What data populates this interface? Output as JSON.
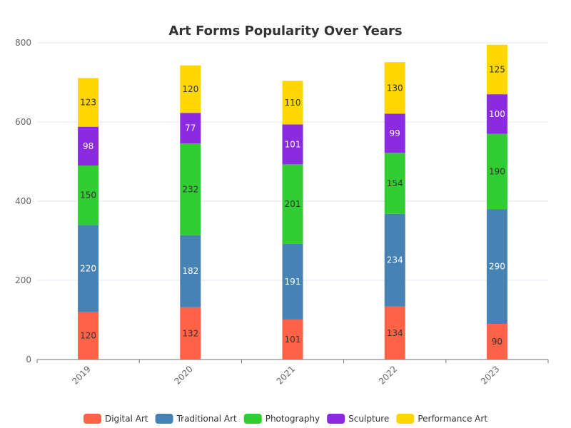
{
  "chart_data": {
    "type": "bar",
    "stacked": true,
    "title": "Art Forms Popularity Over Years",
    "categories": [
      "2019",
      "2020",
      "2021",
      "2022",
      "2023"
    ],
    "series": [
      {
        "name": "Digital Art",
        "color": "#FF6347",
        "label_color": "#333333",
        "values": [
          120,
          132,
          101,
          134,
          90
        ]
      },
      {
        "name": "Traditional Art",
        "color": "#4682B4",
        "label_color": "#ffffff",
        "values": [
          220,
          182,
          191,
          234,
          290
        ]
      },
      {
        "name": "Photography",
        "color": "#32CD32",
        "label_color": "#333333",
        "values": [
          150,
          232,
          201,
          154,
          190
        ]
      },
      {
        "name": "Sculpture",
        "color": "#8A2BE2",
        "label_color": "#ffffff",
        "values": [
          98,
          77,
          101,
          99,
          100
        ]
      },
      {
        "name": "Performance Art",
        "color": "#FFD700",
        "label_color": "#333333",
        "values": [
          123,
          120,
          110,
          130,
          125
        ]
      }
    ],
    "ylim": [
      0,
      800
    ],
    "yticks": [
      "0",
      "200",
      "400",
      "600",
      "800"
    ],
    "grid": true,
    "legend_position": "bottom",
    "xlabel": "",
    "ylabel": ""
  }
}
